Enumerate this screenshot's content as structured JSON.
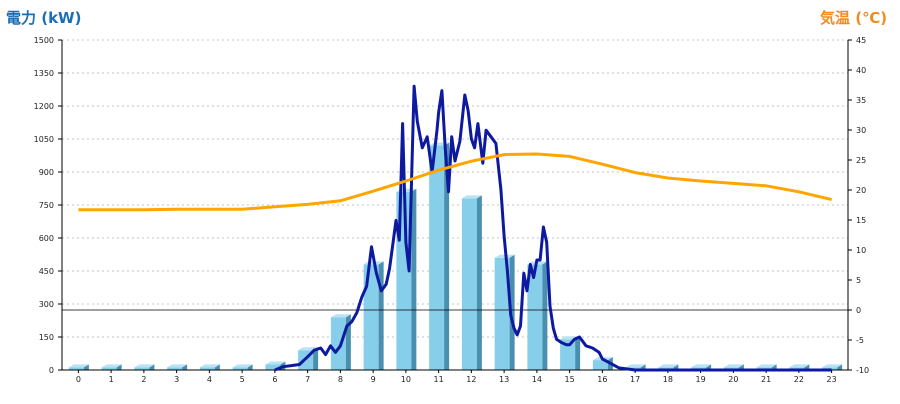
{
  "chart_data": {
    "type": "bar",
    "left_axis_title": "電力 (kW)",
    "right_axis_title": "気温 (℃)",
    "colors": {
      "left_title": "#1a6fb8",
      "right_title": "#f08c1e",
      "bar_face": "#87ceeb",
      "bar_side": "#4a8fb0",
      "bar_top": "#b9e3f5",
      "power_line": "#0d1aa0",
      "temp_line": "#ffa500",
      "grid": "#b0b0b0"
    },
    "x_categories": [
      "0",
      "1",
      "2",
      "3",
      "4",
      "5",
      "6",
      "7",
      "8",
      "9",
      "10",
      "11",
      "12",
      "13",
      "14",
      "15",
      "16",
      "17",
      "18",
      "19",
      "20",
      "21",
      "22",
      "23"
    ],
    "y_left_ticks": [
      "0",
      "150",
      "300",
      "450",
      "600",
      "750",
      "900",
      "1050",
      "1200",
      "1350",
      "1500"
    ],
    "y_right_ticks": [
      "-10",
      "-5",
      "0",
      "5",
      "10",
      "15",
      "20",
      "25",
      "30",
      "35",
      "40",
      "45"
    ],
    "y_left_range": [
      0,
      1500
    ],
    "y_right_range": [
      -10,
      45
    ],
    "grid": true,
    "series": [
      {
        "kind": "bar",
        "axis": "left",
        "values": [
          12,
          12,
          12,
          12,
          12,
          12,
          25,
          90,
          240,
          480,
          810,
          1020,
          780,
          510,
          480,
          140,
          45,
          12,
          12,
          12,
          12,
          12,
          12,
          12
        ]
      },
      {
        "kind": "line",
        "axis": "left",
        "x": [
          6,
          6.25,
          6.5,
          6.75,
          7,
          7.2,
          7.4,
          7.55,
          7.7,
          7.85,
          8,
          8.2,
          8.35,
          8.5,
          8.65,
          8.8,
          8.95,
          9.1,
          9.25,
          9.4,
          9.5,
          9.6,
          9.7,
          9.8,
          9.9,
          10,
          10.1,
          10.25,
          10.35,
          10.5,
          10.65,
          10.8,
          10.95,
          11,
          11.1,
          11.2,
          11.3,
          11.4,
          11.5,
          11.65,
          11.8,
          11.9,
          12,
          12.1,
          12.2,
          12.35,
          12.45,
          12.6,
          12.75,
          12.9,
          13,
          13.1,
          13.2,
          13.3,
          13.4,
          13.5,
          13.6,
          13.7,
          13.8,
          13.9,
          14,
          14.1,
          14.2,
          14.3,
          14.4,
          14.5,
          14.6,
          14.75,
          14.9,
          15,
          15.15,
          15.3,
          15.5,
          15.7,
          15.9,
          16,
          16.5,
          17,
          18,
          19,
          20,
          21,
          22,
          23
        ],
        "values": [
          0,
          15,
          20,
          25,
          60,
          90,
          100,
          70,
          110,
          80,
          110,
          200,
          220,
          260,
          330,
          380,
          560,
          440,
          360,
          390,
          460,
          570,
          680,
          590,
          1120,
          580,
          450,
          1290,
          1130,
          1010,
          1060,
          900,
          1090,
          1170,
          1270,
          1010,
          810,
          1060,
          950,
          1040,
          1250,
          1180,
          1050,
          1010,
          1120,
          940,
          1090,
          1060,
          1030,
          820,
          610,
          450,
          250,
          190,
          160,
          200,
          440,
          360,
          480,
          420,
          500,
          500,
          650,
          580,
          290,
          190,
          140,
          125,
          115,
          115,
          140,
          150,
          110,
          100,
          80,
          50,
          10,
          0,
          0,
          0,
          0,
          0,
          0,
          0
        ]
      },
      {
        "kind": "line",
        "axis": "right",
        "x": [
          0,
          1,
          2,
          3,
          4,
          5,
          6,
          7,
          8,
          9,
          10,
          11,
          12,
          13,
          14,
          15,
          16,
          17,
          18,
          19,
          20,
          21,
          22,
          23
        ],
        "values": [
          16.7,
          16.7,
          16.7,
          16.8,
          16.8,
          16.8,
          17.2,
          17.6,
          18.2,
          19.8,
          21.5,
          23.3,
          24.8,
          25.9,
          26.0,
          25.6,
          24.3,
          22.9,
          22.0,
          21.5,
          21.1,
          20.7,
          19.7,
          18.4
        ]
      }
    ]
  }
}
